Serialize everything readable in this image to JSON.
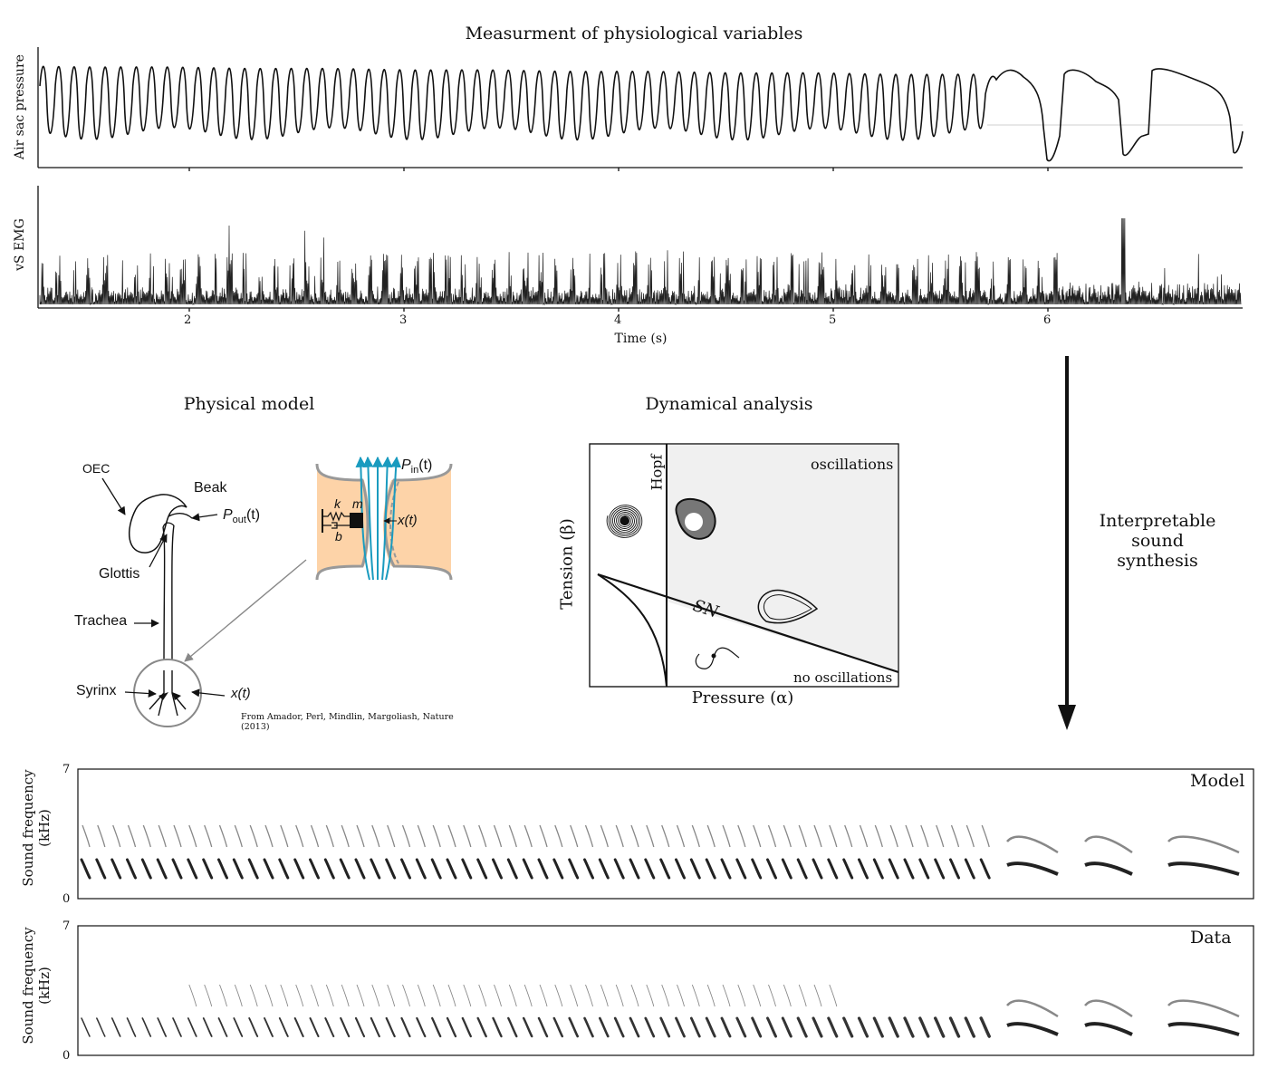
{
  "top_panel": {
    "title": "Measurment of physiological variables",
    "pressure_label": "Air sac pressure",
    "emg_label": "vS EMG",
    "xlabel": "Time (s)",
    "ticks": [
      "2",
      "3",
      "4",
      "5",
      "6"
    ]
  },
  "physical_model": {
    "title": "Physical model",
    "labels": {
      "oec": "OEC",
      "beak": "Beak",
      "pout_main": "P",
      "pout_sub": "out",
      "pout_arg": "(t)",
      "glottis": "Glottis",
      "trachea": "Trachea",
      "syrinx": "Syrinx",
      "xt": "x(t)",
      "pin_main": "P",
      "pin_sub": "in",
      "pin_arg": "(t)",
      "k": "k",
      "m": "m",
      "b": "b",
      "xt_inset": "x(t)"
    },
    "credit": "From Amador, Perl, Mindlin, Margoliash, Nature (2013)"
  },
  "dynamical_analysis": {
    "title": "Dynamical analysis",
    "hopf": "Hopf",
    "oscillations": "oscillations",
    "sn": "SN",
    "no_oscillations": "no oscillations",
    "xlabel": "Pressure (α)",
    "ylabel": "Tension (β)"
  },
  "arrow_label": {
    "line1": "Interpretable",
    "line2": "sound",
    "line3": "synthesis"
  },
  "spectrograms": [
    {
      "label": "Model",
      "ylabel_line1": "Sound frequency",
      "ylabel_line2": "(kHz)",
      "ymax": "7",
      "ymin": "0"
    },
    {
      "label": "Data",
      "ylabel_line1": "Sound frequency",
      "ylabel_line2": "(kHz)",
      "ymax": "7",
      "ymin": "0"
    }
  ],
  "colors": {
    "ink": "#111111",
    "cyan_flow": "#1a9bbf",
    "tissue": "#fdd3a8",
    "phase_shade": "#f0f0f0"
  }
}
